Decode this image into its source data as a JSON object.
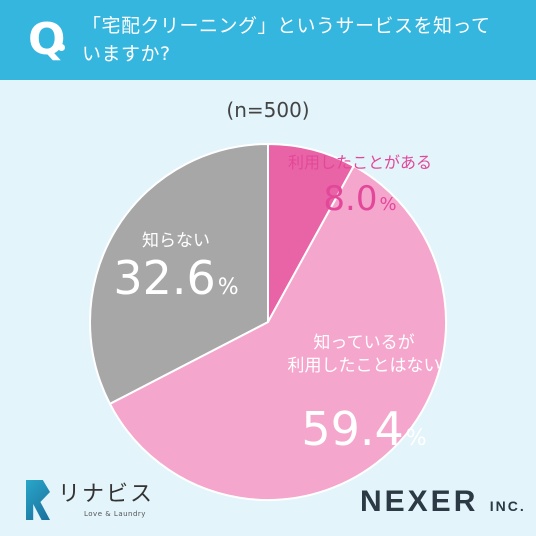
{
  "header": {
    "q_mark": "Q",
    "question_line1": "「宅配クリーニング」というサービスを知って",
    "question_line2": "いますか?"
  },
  "sample_size": "(n=500)",
  "chart_data": {
    "type": "pie",
    "sample": "n=500",
    "slices": [
      {
        "label": "利用したことがある",
        "value": 8.0,
        "display": "8.0",
        "color": "#e964a6",
        "text_color": "#e3479a"
      },
      {
        "label_lines": [
          "知っているが",
          "利用したことはない"
        ],
        "label": "知っているが利用したことはない",
        "value": 59.4,
        "display": "59.4",
        "color": "#f5a6cd",
        "text_color": "#ffffff"
      },
      {
        "label": "知らない",
        "value": 32.6,
        "display": "32.6",
        "color": "#a7a7a7",
        "text_color": "#ffffff"
      }
    ],
    "unit": "%"
  },
  "logos": {
    "left_name": "リナビス",
    "left_sub": "Love & Laundry",
    "right_name": "NEXER",
    "right_suffix": "INC."
  },
  "colors": {
    "header": "#35b6df",
    "background": "#e3f4fb"
  }
}
